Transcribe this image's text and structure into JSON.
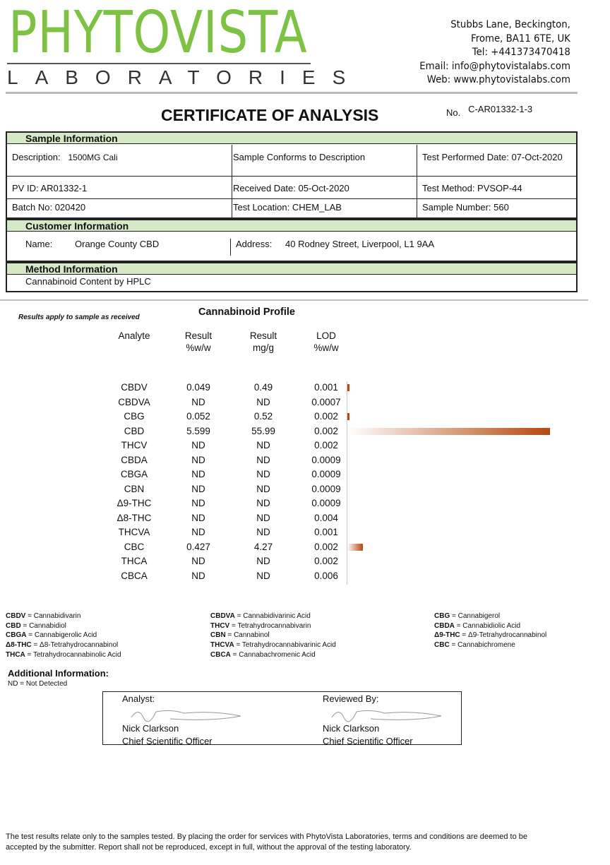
{
  "header": {
    "logo_main": "PHYTOVISTA",
    "logo_sub": "LABORATORIES",
    "address": [
      "Stubbs Lane, Beckington,",
      "Frome, BA11 6TE, UK",
      "Tel: +441373470418",
      "Email: info@phytovistalabs.com",
      "Web: www.phytovistalabs.com"
    ],
    "title": "CERTIFICATE OF ANALYSIS",
    "no_label": "No.",
    "no_value": "C-AR01332-1-3"
  },
  "sample": {
    "heading": "Sample Information",
    "description_label": "Description:",
    "description": "1500MG Cali",
    "conforms": "Sample Conforms to Description",
    "test_date": "Test Performed Date: 07-Oct-2020",
    "pv_id": "PV ID: AR01332-1",
    "received": "Received Date:  05-Oct-2020",
    "method": "Test Method: PVSOP-44",
    "batch": "Batch No: 020420",
    "location": "Test Location: CHEM_LAB",
    "sample_number": "Sample Number:  560"
  },
  "customer": {
    "heading": "Customer Information",
    "name_label": "Name:",
    "name": "Orange County CBD",
    "address_label": "Address:",
    "address": "40 Rodney Street, Liverpool, L1 9AA"
  },
  "method": {
    "heading": "Method Information",
    "value": "Cannabinoid Content by HPLC"
  },
  "results": {
    "note": "Results apply to sample as received",
    "heading": "Cannabinoid Profile",
    "columns": [
      "Analyte",
      "Result\n%w/w",
      "Result\nmg/g",
      "LOD\n%w/w"
    ],
    "rows": [
      [
        "CBDV",
        "0.049",
        "0.49",
        "0.001"
      ],
      [
        "CBDVA",
        "ND",
        "ND",
        "0.0007"
      ],
      [
        "CBG",
        "0.052",
        "0.52",
        "0.002"
      ],
      [
        "CBD",
        "5.599",
        "55.99",
        "0.002"
      ],
      [
        "THCV",
        "ND",
        "ND",
        "0.002"
      ],
      [
        "CBDA",
        "ND",
        "ND",
        "0.0009"
      ],
      [
        "CBGA",
        "ND",
        "ND",
        "0.0009"
      ],
      [
        "CBN",
        "ND",
        "ND",
        "0.0009"
      ],
      [
        "Δ9-THC",
        "ND",
        "ND",
        "0.0009"
      ],
      [
        "Δ8-THC",
        "ND",
        "ND",
        "0.004"
      ],
      [
        "THCVA",
        "ND",
        "ND",
        "0.001"
      ],
      [
        "CBC",
        "0.427",
        "4.27",
        "0.002"
      ],
      [
        "THCA",
        "ND",
        "ND",
        "0.002"
      ],
      [
        "CBCA",
        "ND",
        "ND",
        "0.006"
      ]
    ],
    "bar_color": "#b5480e"
  },
  "legend": [
    [
      [
        "CBDV",
        "Cannabidivarin"
      ],
      [
        "CBD",
        "Cannabidiol"
      ],
      [
        "CBGA",
        "Cannabigerolic Acid"
      ],
      [
        "Δ8-THC",
        "Δ8-Tetrahydrocannabinol"
      ],
      [
        "THCA",
        "Tetrahydrocannabinolic Acid"
      ]
    ],
    [
      [
        "CBDVA",
        "Cannabidivarinic Acid"
      ],
      [
        "THCV",
        "Tetrahydrocannabivarin"
      ],
      [
        "CBN",
        "Cannabinol"
      ],
      [
        "THCVA",
        "Tetrahydrocannabivarinic Acid"
      ],
      [
        "CBCA",
        "Cannabachromenic Acid"
      ]
    ],
    [
      [
        "CBG",
        "Cannabigerol"
      ],
      [
        "CBDA",
        "Cannabidiolic Acid"
      ],
      [
        "Δ9-THC",
        "Δ9-Tetrahydrocannabinol"
      ],
      [
        "CBC",
        "Cannabichromene"
      ]
    ]
  ],
  "additional": {
    "heading": "Additional Information:",
    "value": "ND = Not Detected"
  },
  "signatures": {
    "analyst_label": "Analyst:",
    "reviewer_label": "Reviewed By:",
    "analyst_name": "Nick Clarkson",
    "analyst_title": "Chief Scientific Officer",
    "reviewer_name": "Nick Clarkson",
    "reviewer_title": "Chief Scientific Officer"
  },
  "footer": "The test results relate only to the samples tested.  By placing the order for services with PhytoVista Laboratories, terms and conditions are deemed to be accepted by the submitter. Report shall not be reproduced, except in full, without the approval of the testing laboratory."
}
